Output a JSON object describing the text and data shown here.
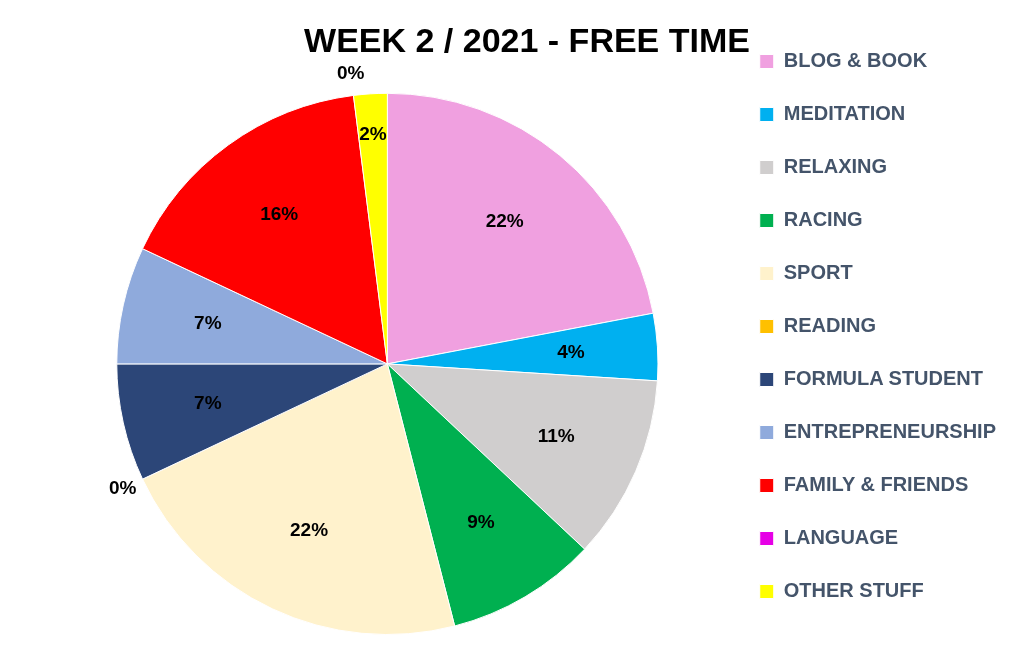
{
  "chart_data": {
    "type": "pie",
    "title": "WEEK 2 / 2021 - FREE TIME",
    "categories": [
      "BLOG & BOOK",
      "MEDITATION",
      "RELAXING",
      "RACING",
      "SPORT",
      "READING",
      "FORMULA STUDENT",
      "ENTREPRENEURSHIP",
      "FAMILY & FRIENDS",
      "LANGUAGE",
      "OTHER STUFF"
    ],
    "values": [
      22,
      4,
      11,
      9,
      22,
      0,
      7,
      7,
      16,
      0,
      2
    ],
    "colors": [
      "#f0a0e0",
      "#00b0f0",
      "#d0cece",
      "#00b050",
      "#fff2cc",
      "#ffc000",
      "#2c4678",
      "#8faadc",
      "#ff0000",
      "#e600e6",
      "#ffff00"
    ],
    "value_labels": [
      "22%",
      "4%",
      "11%",
      "9%",
      "22%",
      "0%",
      "7%",
      "7%",
      "16%",
      "0%",
      "2%"
    ],
    "legend": "right"
  }
}
